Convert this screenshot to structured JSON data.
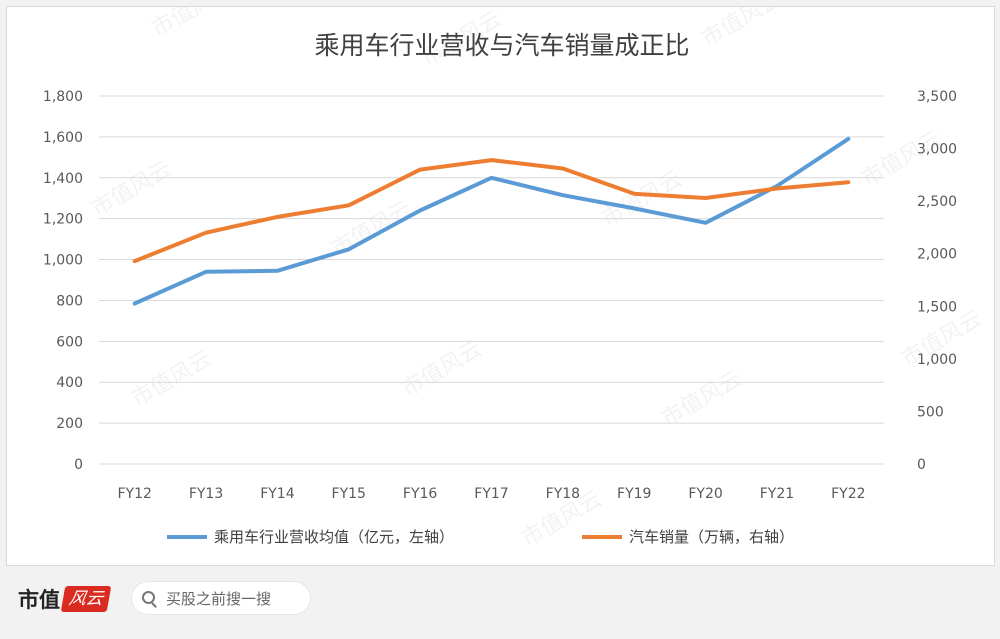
{
  "chart_data": {
    "type": "line",
    "title": "乘用车行业营收与汽车销量成正比",
    "x": [
      "FY12",
      "FY13",
      "FY14",
      "FY15",
      "FY16",
      "FY17",
      "FY18",
      "FY19",
      "FY20",
      "FY21",
      "FY22"
    ],
    "y_left": {
      "ticks": [
        "0",
        "200",
        "400",
        "600",
        "800",
        "1,000",
        "1,200",
        "1,400",
        "1,600",
        "1,800"
      ],
      "ylim": [
        0,
        1800
      ]
    },
    "y_right": {
      "ticks": [
        "0",
        "500",
        "1,000",
        "1,500",
        "2,000",
        "2,500",
        "3,000",
        "3,500"
      ],
      "ylim": [
        0,
        3500
      ]
    },
    "series": [
      {
        "name": "乘用车行业营收均值（亿元，左轴）",
        "axis": "left",
        "color": "#5b9bd5",
        "values": [
          785,
          940,
          945,
          1050,
          1240,
          1400,
          1315,
          1250,
          1180,
          1360,
          1590
        ]
      },
      {
        "name": "汽车销量（万辆，右轴）",
        "axis": "right",
        "color": "#ed7d31",
        "values": [
          1930,
          2200,
          2350,
          2460,
          2800,
          2890,
          2810,
          2570,
          2530,
          2620,
          2680
        ]
      }
    ],
    "grid": true,
    "legend_position": "bottom"
  },
  "footer": {
    "brand_name": "市值",
    "brand_tag": "风云",
    "search_placeholder": "买股之前搜一搜"
  },
  "watermark_text": "市值风云"
}
